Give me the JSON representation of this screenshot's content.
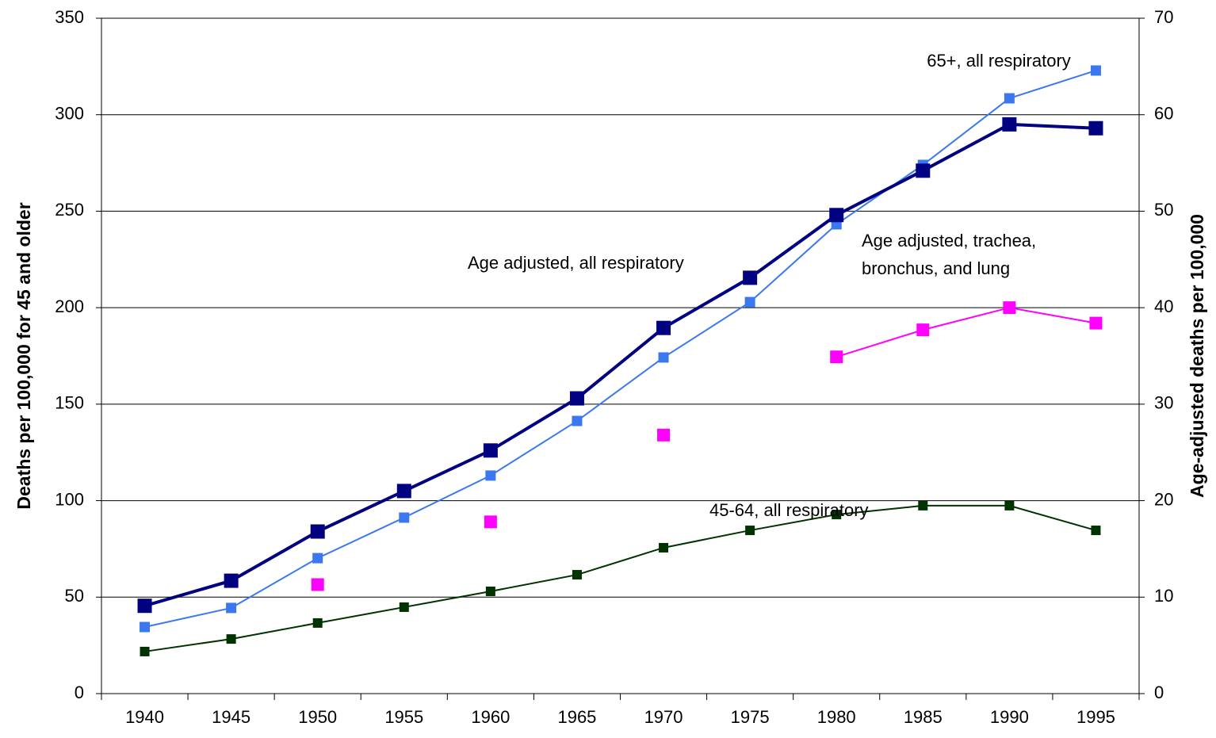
{
  "chart_data": {
    "type": "line",
    "y_axis_label": "Deaths per 100,000 for 45 and older",
    "y2_axis_label": "Age-adjusted deaths per 100,000",
    "categories": [
      "1940",
      "1945",
      "1950",
      "1955",
      "1960",
      "1965",
      "1970",
      "1975",
      "1980",
      "1985",
      "1990",
      "1995"
    ],
    "ylim": [
      0,
      350
    ],
    "yticks": [
      0,
      50,
      100,
      150,
      200,
      250,
      300,
      350
    ],
    "y2lim": [
      0,
      70
    ],
    "y2ticks": [
      0,
      10,
      20,
      30,
      40,
      50,
      60,
      70
    ],
    "grid": true,
    "series": [
      {
        "label": [
          "65+, all respiratory"
        ],
        "color": "#3b78f0",
        "axis": "y",
        "values": [
          34.5,
          44.4,
          70.2,
          91.2,
          113.0,
          141.3,
          174.2,
          202.9,
          243.2,
          274.0,
          308.5,
          322.9
        ]
      },
      {
        "label": [
          "Age adjusted, all respiratory"
        ],
        "color": "#000080",
        "axis": "y2",
        "values": [
          9.1,
          11.7,
          16.8,
          21.0,
          25.2,
          30.6,
          37.9,
          43.1,
          49.6,
          54.2,
          59.0,
          58.6
        ]
      },
      {
        "label": [
          "Age adjusted, trachea,",
          "bronchus, and lung"
        ],
        "color": "#ff00ff",
        "axis": "y2",
        "values": [
          null,
          null,
          11.3,
          null,
          17.8,
          null,
          26.8,
          null,
          34.9,
          37.7,
          40.0,
          38.4
        ]
      },
      {
        "label": [
          "45-64, all respiratory"
        ],
        "color": "#003300",
        "axis": "y",
        "values": [
          21.8,
          28.3,
          36.6,
          44.8,
          53.0,
          61.6,
          75.6,
          84.6,
          92.8,
          97.4,
          97.4,
          84.6
        ]
      }
    ]
  }
}
